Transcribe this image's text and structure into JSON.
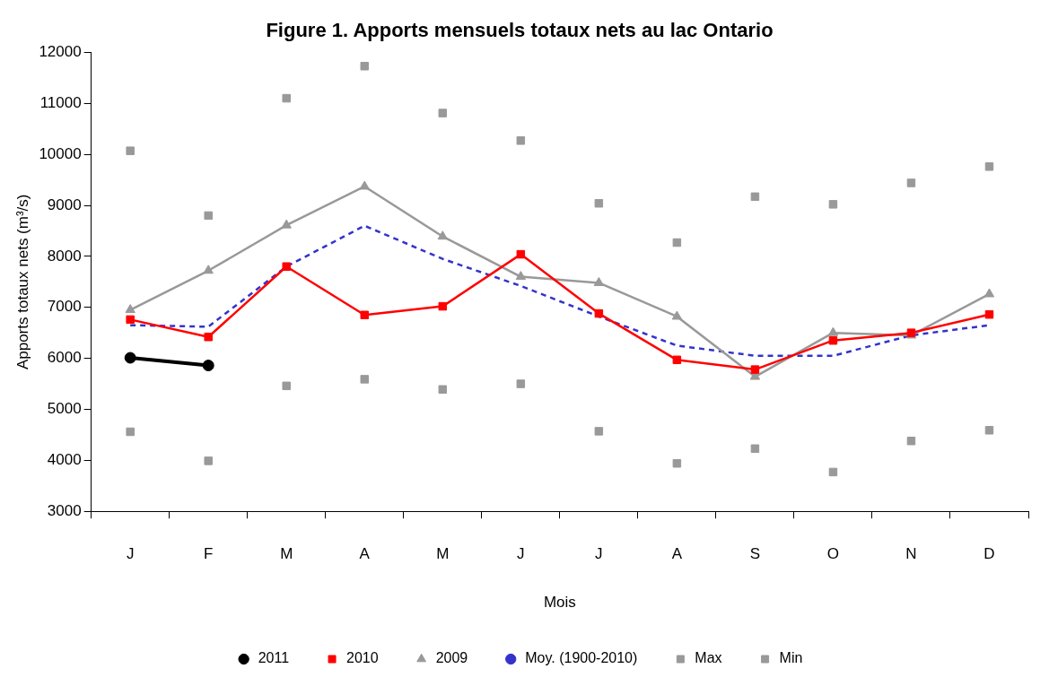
{
  "chart_data": {
    "type": "line",
    "title": "Figure 1. Apports mensuels totaux nets au lac Ontario",
    "xlabel": "Mois",
    "ylabel": "Apports totaux nets (m³/s)",
    "categories": [
      "J",
      "F",
      "M",
      "A",
      "M",
      "J",
      "J",
      "A",
      "S",
      "O",
      "N",
      "D"
    ],
    "ylim": [
      3000,
      12000
    ],
    "yticks": [
      3000,
      4000,
      5000,
      6000,
      7000,
      8000,
      9000,
      10000,
      11000,
      12000
    ],
    "grid": false,
    "legend": "bottom",
    "series": [
      {
        "name": "Min",
        "type": "scatter",
        "marker": "square",
        "color": "#999999",
        "values": [
          4560,
          3990,
          5460,
          5590,
          5390,
          5500,
          4570,
          3940,
          4230,
          3770,
          4380,
          4590
        ]
      },
      {
        "name": "Max",
        "type": "scatter",
        "marker": "square",
        "color": "#999999",
        "values": [
          10070,
          8800,
          11100,
          11730,
          10810,
          10270,
          9040,
          8270,
          9170,
          9020,
          9440,
          9760
        ]
      },
      {
        "name": "Moy. (1900-2010)",
        "type": "line",
        "marker": "none",
        "line_style": "dashed",
        "color": "#3333cc",
        "values": [
          6650,
          6620,
          7800,
          8600,
          7950,
          7420,
          6820,
          6250,
          6050,
          6050,
          6450,
          6650
        ]
      },
      {
        "name": "2009",
        "type": "line",
        "marker": "triangle",
        "line_style": "solid",
        "color": "#999999",
        "values": [
          6950,
          7720,
          8610,
          9370,
          8390,
          7600,
          7480,
          6820,
          5640,
          6500,
          6450,
          7260
        ]
      },
      {
        "name": "2010",
        "type": "line",
        "marker": "square",
        "line_style": "solid",
        "color": "#ff0000",
        "values": [
          6760,
          6420,
          7800,
          6850,
          7020,
          8040,
          6880,
          5970,
          5780,
          6350,
          6500,
          6860
        ]
      },
      {
        "name": "2011",
        "type": "line",
        "marker": "circle",
        "line_style": "solid",
        "color": "#000000",
        "values": [
          6010,
          5860,
          null,
          null,
          null,
          null,
          null,
          null,
          null,
          null,
          null,
          null
        ]
      }
    ]
  }
}
